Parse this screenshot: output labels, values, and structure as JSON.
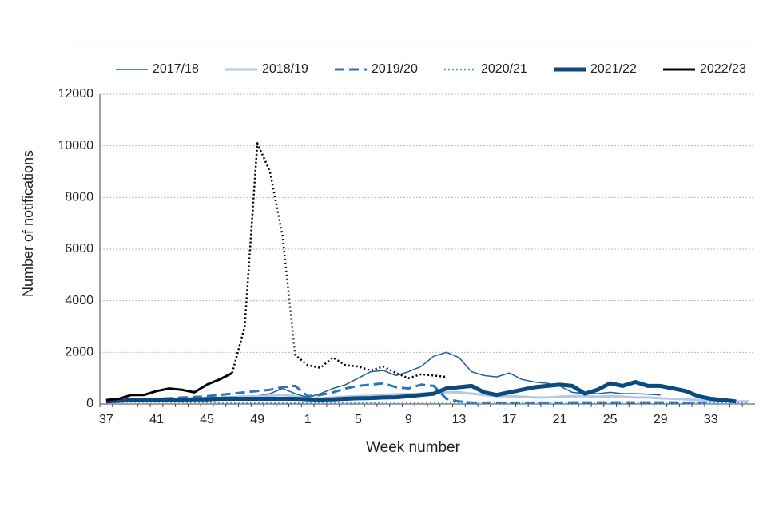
{
  "chart_data": {
    "type": "line",
    "y_label": "Number of notifications",
    "x_label": "Week number",
    "categories": [
      "37",
      null,
      null,
      null,
      "41",
      null,
      null,
      null,
      "45",
      null,
      null,
      null,
      "49",
      null,
      null,
      null,
      "1",
      null,
      null,
      null,
      "5",
      null,
      null,
      null,
      "9",
      null,
      null,
      null,
      "13",
      null,
      null,
      null,
      "17",
      null,
      null,
      null,
      "21",
      null,
      null,
      null,
      "25",
      null,
      null,
      null,
      "29",
      null,
      null,
      null,
      "33",
      null,
      null,
      null
    ],
    "ylim": [
      0,
      12000
    ],
    "yticks": [
      0,
      2000,
      4000,
      6000,
      8000,
      10000,
      12000
    ],
    "grid": true,
    "legend": "top",
    "series": [
      {
        "name": "2017/18",
        "color": "#1f5f99",
        "width": 1.5,
        "style": "solid",
        "values": [
          150,
          150,
          170,
          180,
          200,
          200,
          220,
          230,
          250,
          260,
          280,
          300,
          320,
          400,
          600,
          400,
          250,
          400,
          600,
          750,
          1000,
          1250,
          1300,
          1100,
          1250,
          1450,
          1850,
          2000,
          1800,
          1250,
          1100,
          1050,
          1200,
          950,
          850,
          800,
          700,
          450,
          400,
          400,
          450,
          400,
          400,
          380,
          350,
          null,
          null,
          null,
          null,
          null,
          null,
          null
        ]
      },
      {
        "name": "2018/19",
        "color": "#b4c7e7",
        "width": 3,
        "style": "solid",
        "values": [
          100,
          100,
          120,
          130,
          150,
          160,
          170,
          180,
          200,
          220,
          250,
          270,
          300,
          320,
          350,
          300,
          200,
          220,
          250,
          280,
          300,
          320,
          350,
          380,
          380,
          400,
          420,
          450,
          450,
          400,
          350,
          300,
          300,
          280,
          250,
          250,
          280,
          300,
          300,
          280,
          300,
          280,
          250,
          250,
          220,
          200,
          180,
          150,
          130,
          120,
          100,
          100
        ]
      },
      {
        "name": "2019/20",
        "color": "#2e75b6",
        "width": 3,
        "style": "dashed",
        "values": [
          150,
          150,
          160,
          170,
          200,
          220,
          250,
          270,
          300,
          350,
          400,
          450,
          500,
          550,
          650,
          700,
          300,
          350,
          450,
          600,
          700,
          750,
          800,
          650,
          600,
          750,
          700,
          200,
          100,
          50,
          50,
          50,
          50,
          50,
          50,
          50,
          50,
          60,
          60,
          60,
          60,
          60,
          60,
          60,
          60,
          60,
          50,
          50,
          50,
          null,
          null,
          null
        ]
      },
      {
        "name": "2020/21",
        "color": "#5b9bd5",
        "width": 2.5,
        "style": "dotted",
        "values": [
          80,
          80,
          80,
          80,
          80,
          80,
          70,
          70,
          70,
          60,
          60,
          60,
          60,
          60,
          50,
          50,
          40,
          40,
          40,
          40,
          40,
          40,
          40,
          40,
          40,
          40,
          40,
          40,
          30,
          30,
          30,
          30,
          30,
          30,
          30,
          30,
          30,
          30,
          30,
          30,
          30,
          30,
          30,
          30,
          30,
          30,
          30,
          30,
          30,
          30,
          30,
          30
        ]
      },
      {
        "name": "2021/22",
        "color": "#0b4a7e",
        "width": 5,
        "style": "solid",
        "values": [
          100,
          120,
          150,
          150,
          150,
          160,
          170,
          180,
          180,
          200,
          200,
          200,
          200,
          200,
          200,
          200,
          180,
          170,
          180,
          200,
          220,
          230,
          250,
          260,
          300,
          350,
          400,
          600,
          650,
          700,
          450,
          350,
          450,
          550,
          650,
          700,
          750,
          700,
          400,
          550,
          800,
          700,
          850,
          700,
          700,
          600,
          500,
          300,
          200,
          150,
          100,
          null
        ]
      },
      {
        "name": "2022/23",
        "color": "#000000",
        "width": 3,
        "style": "solid",
        "values": [
          150,
          200,
          350,
          350,
          500,
          600,
          550,
          450,
          750,
          950,
          1200,
          null,
          null,
          null,
          null,
          null,
          null,
          null,
          null,
          null,
          null,
          null,
          null,
          null,
          null,
          null,
          null,
          null,
          null,
          null,
          null,
          null,
          null,
          null,
          null,
          null,
          null,
          null,
          null,
          null,
          null,
          null,
          null,
          null,
          null,
          null,
          null,
          null,
          null,
          null,
          null,
          null
        ]
      },
      {
        "color": "#000000",
        "width": 2.5,
        "style": "dotted",
        "values": [
          null,
          null,
          null,
          null,
          null,
          null,
          null,
          null,
          null,
          null,
          1200,
          3000,
          10100,
          9000,
          6500,
          1900,
          1500,
          1400,
          1800,
          1500,
          1450,
          1300,
          1450,
          1200,
          1000,
          1150,
          1100,
          1050,
          null,
          null,
          null,
          null,
          null,
          null,
          null,
          null,
          null,
          null,
          null,
          null,
          null,
          null,
          null,
          null,
          null,
          null,
          null,
          null,
          null,
          null,
          null,
          null
        ]
      }
    ]
  }
}
